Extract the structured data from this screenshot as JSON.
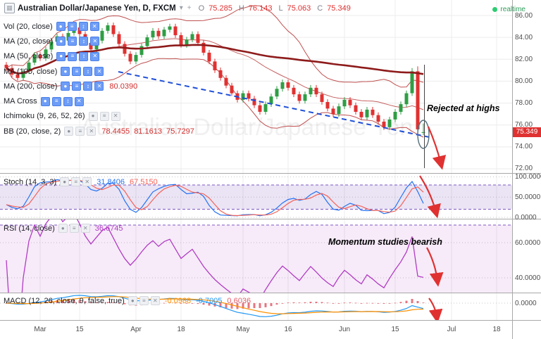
{
  "header": {
    "symbol": "Australian Dollar/Japanese Yen, D, FXCM",
    "ohlc": {
      "o_label": "O",
      "o": "75.285",
      "h_label": "H",
      "h": "76.143",
      "l_label": "L",
      "l": "75.063",
      "c_label": "C",
      "c": "75.349"
    },
    "realtime": "realtime"
  },
  "legend": {
    "rows": [
      {
        "label": "Vol (20, close)",
        "value": "",
        "style": "blue"
      },
      {
        "label": "MA (20, close)",
        "value": "",
        "style": "blue"
      },
      {
        "label": "MA (50, close)",
        "value": "",
        "style": "blue"
      },
      {
        "label": "MA (100, close)",
        "value": "",
        "style": "blue"
      },
      {
        "label": "MA (200, close)",
        "value": "80.0390",
        "style": "blue"
      },
      {
        "label": "MA Cross",
        "value": "",
        "style": "blue"
      },
      {
        "label": "Ichimoku (9, 26, 52, 26)",
        "value": "",
        "style": "gray"
      },
      {
        "label": "BB (20, close, 2)",
        "value": "78.4455  81.1613  75.7297",
        "style": "gray"
      }
    ]
  },
  "panels": {
    "stoch": {
      "label": "Stoch (14, 3, 3)",
      "values": [
        "31.8406",
        "67.5150"
      ]
    },
    "rsi": {
      "label": "RSI (14, close)",
      "values": [
        "36.6745"
      ]
    },
    "macd": {
      "label": "MACD (12, 26, close, 9, false, true)",
      "values": [
        "-0.0988",
        "-0.7005",
        "0.6036"
      ]
    }
  },
  "annotations": {
    "rejected": "Rejected at highs",
    "momentum": "Momentum studies bearish",
    "watermark": "Australian Dollar/Japanese Yen"
  },
  "price_badge": "75.349",
  "icons": {
    "grid": "▦",
    "caret": "▾",
    "plus": "+",
    "eye": "●",
    "settings": "≡",
    "arrows": "↕",
    "close": "✕",
    "dot": "●"
  },
  "colors": {
    "up": "#2f9e44",
    "down": "#e03131",
    "ma_thick": "#8e1b1b",
    "bb": "#c05050",
    "trend": "#1f4fd8",
    "stoch_k": "#2472f2",
    "stoch_d": "#f2645a",
    "rsi": "#b13bc4",
    "macd": "#2196f3",
    "signal": "#ff8f00",
    "hist": "#e25d6a",
    "accent_red": "#e03131",
    "band_purple": "#7e57c2",
    "grid": "#ececec",
    "sep": "#a8a8a8"
  },
  "chart_data": {
    "type": "candlestick",
    "title": "Australian Dollar/Japanese Yen",
    "timeframe": "D",
    "exchange": "FXCM",
    "price_axis_labels": [
      "86.00",
      "84.00",
      "82.00",
      "80.00",
      "78.00",
      "76.00",
      "74.00",
      "72.00"
    ],
    "price_range": [
      72,
      86
    ],
    "time_axis_labels": [
      {
        "t": "Mar",
        "i": 6
      },
      {
        "t": "15",
        "i": 13
      },
      {
        "t": "Apr",
        "i": 23
      },
      {
        "t": "18",
        "i": 31
      },
      {
        "t": "May",
        "i": 42
      },
      {
        "t": "16",
        "i": 50
      },
      {
        "t": "Jun",
        "i": 60
      },
      {
        "t": "15",
        "i": 69
      },
      {
        "t": "Jul",
        "i": 79
      },
      {
        "t": "18",
        "i": 87
      }
    ],
    "last": {
      "o": 75.285,
      "h": 76.143,
      "l": 75.063,
      "c": 75.349
    },
    "sub_axes": {
      "stoch": [
        "100.0000",
        "50.0000",
        "0.0000"
      ],
      "rsi": [
        "60.0000",
        "40.0000"
      ],
      "macd": [
        "0.0000"
      ]
    },
    "candles": [
      [
        81.5,
        81.75,
        80.95,
        81.2
      ],
      [
        81.2,
        81.45,
        80.35,
        80.6
      ],
      [
        80.6,
        80.85,
        80.05,
        80.3
      ],
      [
        80.3,
        81.15,
        80.05,
        80.9
      ],
      [
        80.9,
        81.95,
        80.65,
        81.7
      ],
      [
        81.7,
        82.65,
        81.45,
        82.4
      ],
      [
        82.4,
        82.65,
        81.85,
        82.1
      ],
      [
        82.1,
        83.15,
        81.85,
        82.9
      ],
      [
        82.9,
        83.85,
        82.65,
        83.6
      ],
      [
        83.6,
        84.35,
        83.35,
        84.1
      ],
      [
        84.1,
        84.35,
        83.45,
        83.7
      ],
      [
        83.7,
        84.65,
        83.45,
        84.4
      ],
      [
        84.4,
        85.15,
        84.15,
        84.9
      ],
      [
        84.9,
        85.15,
        84.05,
        84.3
      ],
      [
        84.3,
        84.55,
        83.25,
        83.5
      ],
      [
        83.5,
        83.75,
        82.65,
        82.9
      ],
      [
        82.9,
        83.95,
        82.65,
        83.7
      ],
      [
        83.7,
        84.85,
        83.45,
        84.6
      ],
      [
        84.6,
        85.35,
        84.35,
        85.1
      ],
      [
        85.1,
        85.35,
        84.05,
        84.3
      ],
      [
        84.3,
        84.55,
        83.15,
        83.4
      ],
      [
        83.4,
        83.65,
        82.25,
        82.5
      ],
      [
        82.5,
        82.75,
        81.55,
        81.8
      ],
      [
        81.8,
        82.65,
        81.55,
        82.4
      ],
      [
        82.4,
        83.45,
        82.15,
        83.2
      ],
      [
        83.2,
        84.25,
        82.95,
        84.0
      ],
      [
        84.0,
        84.85,
        83.75,
        84.6
      ],
      [
        84.6,
        84.85,
        83.85,
        84.1
      ],
      [
        84.1,
        84.95,
        83.85,
        84.7
      ],
      [
        84.7,
        85.25,
        84.45,
        85.0
      ],
      [
        85.0,
        85.25,
        83.95,
        84.2
      ],
      [
        84.2,
        84.45,
        83.05,
        83.3
      ],
      [
        83.3,
        84.05,
        83.05,
        83.8
      ],
      [
        83.8,
        84.55,
        83.55,
        84.3
      ],
      [
        84.3,
        84.55,
        83.25,
        83.5
      ],
      [
        83.5,
        83.75,
        82.35,
        82.6
      ],
      [
        82.6,
        82.85,
        81.55,
        81.8
      ],
      [
        81.8,
        82.05,
        80.75,
        81.0
      ],
      [
        81.0,
        81.25,
        80.05,
        80.3
      ],
      [
        80.3,
        80.55,
        79.35,
        79.6
      ],
      [
        79.6,
        79.85,
        78.65,
        78.9
      ],
      [
        78.9,
        79.15,
        78.05,
        78.3
      ],
      [
        78.3,
        79.15,
        78.05,
        78.9
      ],
      [
        78.9,
        79.15,
        78.15,
        78.4
      ],
      [
        78.4,
        78.65,
        77.55,
        77.8
      ],
      [
        77.8,
        78.05,
        76.95,
        77.2
      ],
      [
        77.2,
        78.15,
        76.95,
        77.9
      ],
      [
        77.9,
        78.85,
        77.65,
        78.6
      ],
      [
        78.6,
        79.55,
        78.35,
        79.3
      ],
      [
        79.3,
        80.15,
        79.05,
        79.9
      ],
      [
        79.9,
        80.15,
        79.15,
        79.4
      ],
      [
        79.4,
        79.65,
        78.55,
        78.8
      ],
      [
        78.8,
        79.05,
        77.95,
        78.2
      ],
      [
        78.2,
        79.05,
        77.95,
        78.8
      ],
      [
        78.8,
        79.65,
        78.55,
        79.4
      ],
      [
        79.4,
        79.65,
        78.55,
        78.8
      ],
      [
        78.8,
        79.05,
        77.85,
        78.1
      ],
      [
        78.1,
        78.35,
        77.25,
        77.5
      ],
      [
        77.5,
        77.75,
        76.75,
        77.0
      ],
      [
        77.0,
        77.95,
        76.75,
        77.7
      ],
      [
        77.7,
        78.55,
        77.45,
        78.3
      ],
      [
        78.3,
        78.55,
        77.55,
        77.8
      ],
      [
        77.8,
        78.05,
        76.95,
        77.2
      ],
      [
        77.2,
        77.45,
        76.45,
        76.7
      ],
      [
        76.7,
        77.65,
        76.45,
        77.4
      ],
      [
        77.4,
        77.65,
        76.65,
        76.9
      ],
      [
        76.9,
        77.15,
        76.05,
        76.3
      ],
      [
        76.3,
        76.55,
        75.55,
        75.8
      ],
      [
        75.8,
        76.75,
        75.55,
        76.5
      ],
      [
        76.5,
        77.45,
        76.25,
        77.2
      ],
      [
        77.2,
        78.15,
        76.95,
        77.9
      ],
      [
        77.9,
        79.15,
        77.65,
        78.9
      ],
      [
        78.9,
        81.2,
        78.65,
        80.9
      ],
      [
        80.9,
        81.35,
        75.4,
        75.6
      ],
      [
        75.285,
        76.143,
        75.063,
        75.349
      ]
    ]
  }
}
